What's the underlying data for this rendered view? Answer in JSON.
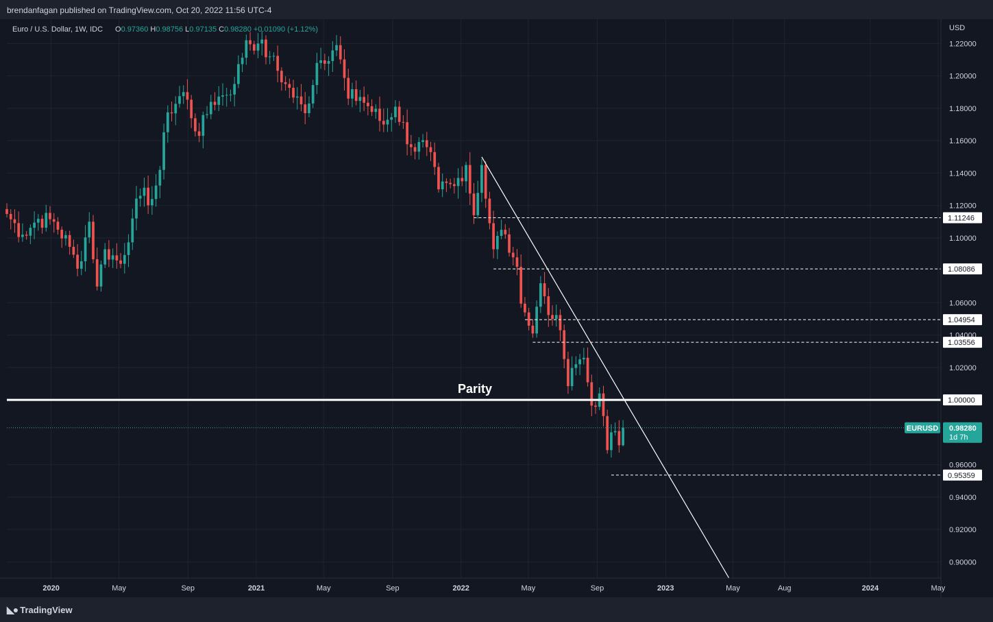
{
  "header": {
    "publisher": "brendanfagan published on TradingView.com, Oct 20, 2022 11:56 UTC-4"
  },
  "footer": {
    "logo_text": "TradingView"
  },
  "legend": {
    "symbol": "Euro / U.S. Dollar, 1W, IDC",
    "o_label": "O",
    "o_value": "0.97360",
    "h_label": "H",
    "h_value": "0.98756",
    "l_label": "L",
    "l_value": "0.97135",
    "c_label": "C",
    "c_value": "0.98280",
    "change": "+0.01090 (+1.12%)"
  },
  "colors": {
    "background": "#131722",
    "up": "#26a69a",
    "down": "#ef5350",
    "grid": "#1f2430",
    "text": "#d1d4dc"
  },
  "chart_data": {
    "type": "candlestick",
    "symbol": "EURUSD",
    "interval": "1W",
    "y_axis": {
      "currency_label": "USD",
      "range": [
        0.89,
        1.235
      ],
      "ticks": [
        "1.22000",
        "1.20000",
        "1.18000",
        "1.16000",
        "1.14000",
        "1.12000",
        "1.10000",
        "1.06000",
        "1.04000",
        "1.02000",
        "0.96000",
        "0.94000",
        "0.92000",
        "0.90000"
      ]
    },
    "x_axis": {
      "range": [
        "2019-10-14",
        "2024-05-06"
      ],
      "ticks": [
        {
          "date": "2020-01-01",
          "label": "2020",
          "bold": true
        },
        {
          "date": "2020-05-01",
          "label": "May",
          "bold": false
        },
        {
          "date": "2020-09-01",
          "label": "Sep",
          "bold": false
        },
        {
          "date": "2021-01-01",
          "label": "2021",
          "bold": true
        },
        {
          "date": "2021-05-01",
          "label": "May",
          "bold": false
        },
        {
          "date": "2021-09-01",
          "label": "Sep",
          "bold": false
        },
        {
          "date": "2022-01-01",
          "label": "2022",
          "bold": true
        },
        {
          "date": "2022-05-01",
          "label": "May",
          "bold": false
        },
        {
          "date": "2022-09-01",
          "label": "Sep",
          "bold": false
        },
        {
          "date": "2023-01-01",
          "label": "2023",
          "bold": true
        },
        {
          "date": "2023-05-01",
          "label": "May",
          "bold": false
        },
        {
          "date": "2023-08-01",
          "label": "Aug",
          "bold": false
        },
        {
          "date": "2024-01-01",
          "label": "2024",
          "bold": true
        },
        {
          "date": "2024-05-01",
          "label": "May",
          "bold": false
        }
      ]
    },
    "closes": [
      [
        "2019-10-14",
        1.1148
      ],
      [
        "2019-11-11",
        1.102
      ],
      [
        "2019-12-09",
        1.1118
      ],
      [
        "2020-01-06",
        1.11
      ],
      [
        "2020-02-03",
        1.0945
      ],
      [
        "2020-02-17",
        1.081
      ],
      [
        "2020-03-09",
        1.11
      ],
      [
        "2020-03-23",
        1.07
      ],
      [
        "2020-04-06",
        1.093
      ],
      [
        "2020-05-04",
        1.084
      ],
      [
        "2020-05-25",
        1.112
      ],
      [
        "2020-06-08",
        1.126
      ],
      [
        "2020-06-29",
        1.124
      ],
      [
        "2020-07-13",
        1.142
      ],
      [
        "2020-07-27",
        1.1775
      ],
      [
        "2020-08-24",
        1.19
      ],
      [
        "2020-09-21",
        1.163
      ],
      [
        "2020-10-12",
        1.184
      ],
      [
        "2020-11-02",
        1.188
      ],
      [
        "2020-11-23",
        1.195
      ],
      [
        "2020-12-14",
        1.222
      ],
      [
        "2021-01-04",
        1.22
      ],
      [
        "2021-01-25",
        1.212
      ],
      [
        "2021-02-22",
        1.195
      ],
      [
        "2021-03-29",
        1.177
      ],
      [
        "2021-04-19",
        1.208
      ],
      [
        "2021-05-24",
        1.219
      ],
      [
        "2021-06-14",
        1.186
      ],
      [
        "2021-07-05",
        1.187
      ],
      [
        "2021-08-16",
        1.17
      ],
      [
        "2021-09-06",
        1.181
      ],
      [
        "2021-10-04",
        1.156
      ],
      [
        "2021-11-01",
        1.156
      ],
      [
        "2021-11-22",
        1.13
      ],
      [
        "2021-12-20",
        1.132
      ],
      [
        "2022-01-10",
        1.145
      ],
      [
        "2022-01-24",
        1.114
      ],
      [
        "2022-02-07",
        1.145
      ],
      [
        "2022-02-28",
        1.093
      ],
      [
        "2022-03-14",
        1.105
      ],
      [
        "2022-04-04",
        1.088
      ],
      [
        "2022-04-25",
        1.054
      ],
      [
        "2022-05-09",
        1.041
      ],
      [
        "2022-05-23",
        1.072
      ],
      [
        "2022-06-13",
        1.05
      ],
      [
        "2022-06-27",
        1.043
      ],
      [
        "2022-07-11",
        1.0085
      ],
      [
        "2022-07-25",
        1.022
      ],
      [
        "2022-08-08",
        1.026
      ],
      [
        "2022-08-22",
        0.9965
      ],
      [
        "2022-09-05",
        1.004
      ],
      [
        "2022-09-19",
        0.969
      ],
      [
        "2022-09-26",
        0.98
      ],
      [
        "2022-10-10",
        0.972
      ],
      [
        "2022-10-17",
        0.9828
      ]
    ],
    "lows_highs": {
      "annotated_low": [
        "2022-09-26",
        0.95359
      ],
      "top_high": [
        "2021-01-04",
        1.2349
      ]
    },
    "horizontal_levels": [
      {
        "value": 1.11246,
        "label": "1.11246",
        "start": "2022-01-24",
        "style": "dashed"
      },
      {
        "value": 1.08086,
        "label": "1.08086",
        "start": "2022-02-28",
        "style": "dashed"
      },
      {
        "value": 1.04954,
        "label": "1.04954",
        "start": "2022-04-25",
        "style": "dashed"
      },
      {
        "value": 1.03556,
        "label": "1.03556",
        "start": "2022-05-09",
        "style": "dashed"
      },
      {
        "value": 0.95359,
        "label": "0.95359",
        "start": "2022-09-26",
        "style": "dashed"
      }
    ],
    "parity": {
      "value": 1.0,
      "label": "1.00000",
      "text": "Parity"
    },
    "trendline": {
      "from": [
        "2022-02-07",
        1.15
      ],
      "to": [
        "2023-04-24",
        0.89
      ]
    },
    "last_price": {
      "symbol": "EURUSD",
      "value": "0.98280",
      "countdown": "1d 7h",
      "raw": 0.9828
    }
  }
}
